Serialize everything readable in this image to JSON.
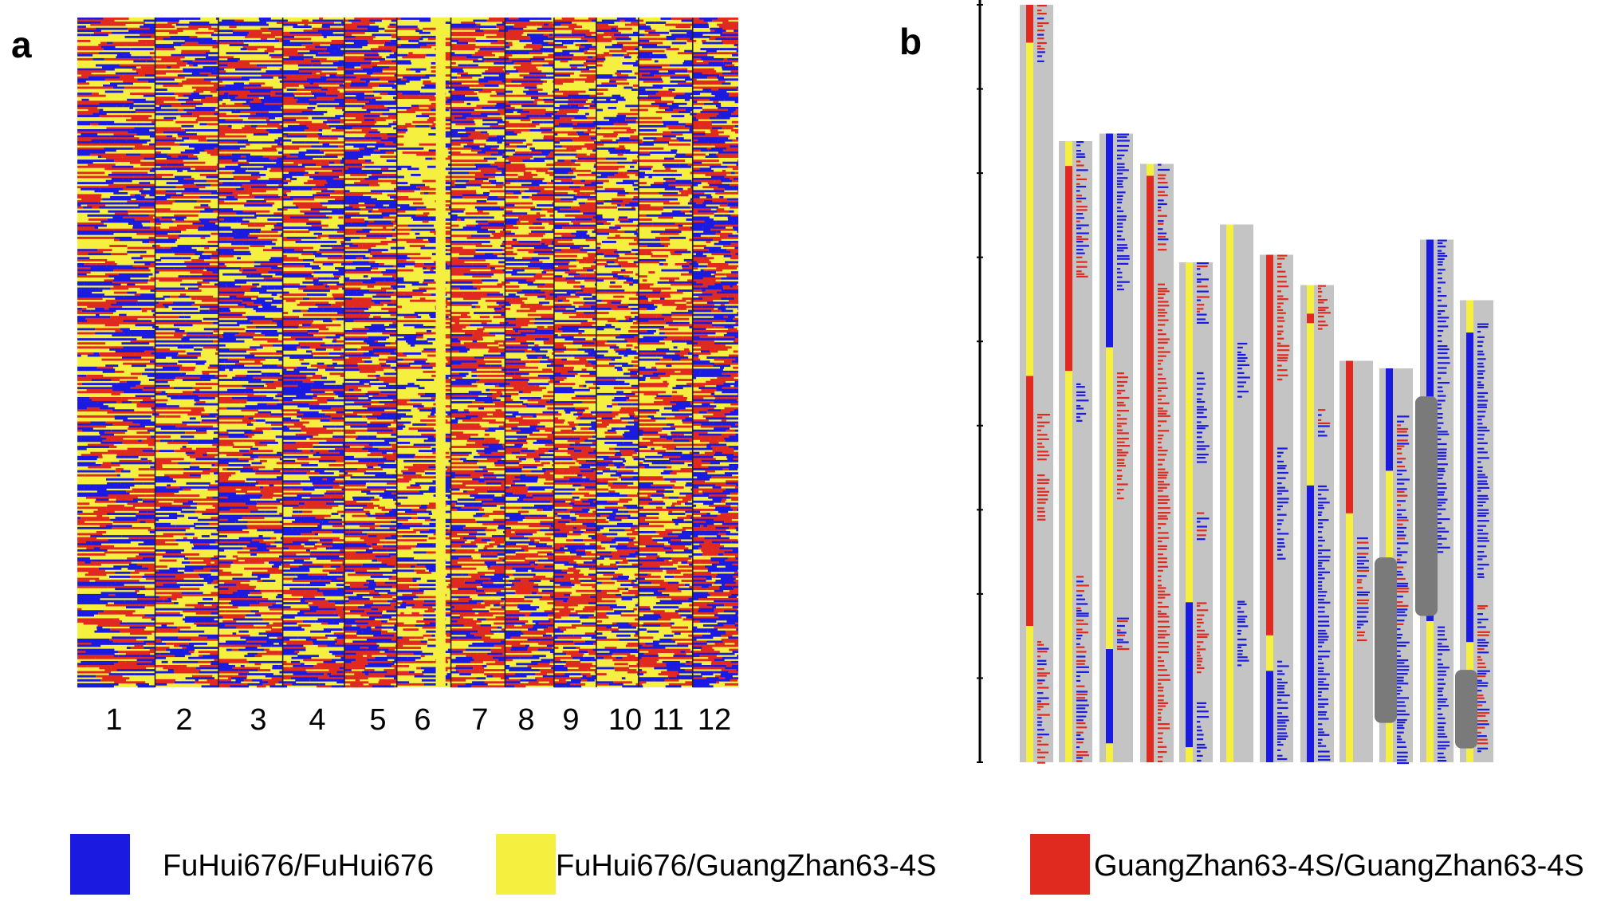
{
  "figure": {
    "panel_a_letter": "a",
    "panel_b_letter": "b"
  },
  "chart_data": [
    {
      "type": "heatmap",
      "panel": "a",
      "title": "",
      "xlabel": "",
      "ylabel": "",
      "x_tick_labels": [
        "1",
        "2",
        "3",
        "4",
        "5",
        "6",
        "7",
        "8",
        "9",
        "10",
        "11",
        "12"
      ],
      "columns": [
        {
          "label": "1",
          "width_weight": 9.2,
          "mix": [
            0.32,
            0.4,
            0.28
          ]
        },
        {
          "label": "2",
          "width_weight": 7.5,
          "mix": [
            0.28,
            0.44,
            0.28
          ]
        },
        {
          "label": "3",
          "width_weight": 7.6,
          "mix": [
            0.33,
            0.4,
            0.27
          ]
        },
        {
          "label": "4",
          "width_weight": 7.3,
          "mix": [
            0.35,
            0.36,
            0.29
          ]
        },
        {
          "label": "5",
          "width_weight": 6.2,
          "mix": [
            0.33,
            0.33,
            0.34
          ]
        },
        {
          "label": "6",
          "width_weight": 6.4,
          "mix": [
            0.2,
            0.56,
            0.24
          ]
        },
        {
          "label": "7",
          "width_weight": 6.4,
          "mix": [
            0.24,
            0.38,
            0.38
          ]
        },
        {
          "label": "8",
          "width_weight": 5.8,
          "mix": [
            0.24,
            0.4,
            0.36
          ]
        },
        {
          "label": "9",
          "width_weight": 5.0,
          "mix": [
            0.26,
            0.36,
            0.38
          ]
        },
        {
          "label": "10",
          "width_weight": 5.0,
          "mix": [
            0.22,
            0.52,
            0.26
          ]
        },
        {
          "label": "11",
          "width_weight": 6.4,
          "mix": [
            0.24,
            0.48,
            0.28
          ]
        },
        {
          "label": "12",
          "width_weight": 5.4,
          "mix": [
            0.38,
            0.26,
            0.36
          ]
        }
      ],
      "rows": 330,
      "genotype_colors": [
        "#1a1ae0",
        "#f5f040",
        "#e02a20"
      ]
    },
    {
      "type": "bar",
      "panel": "b",
      "title": "",
      "xlabel": "",
      "ylabel": "",
      "chromosomes": [
        {
          "length": 1.0,
          "segments": [
            [
              "r",
              0,
              0.05
            ],
            [
              "y",
              0.05,
              0.49
            ],
            [
              "r",
              0.49,
              0.82
            ],
            [
              "y",
              0.82,
              1.0
            ]
          ],
          "marker_zones": [
            [
              0.0,
              0.08,
              "br"
            ],
            [
              0.54,
              0.6,
              "r"
            ],
            [
              0.62,
              0.68,
              "r"
            ],
            [
              0.84,
              1.0,
              "br"
            ]
          ]
        },
        {
          "length": 0.82,
          "segments": [
            [
              "y",
              0,
              0.04
            ],
            [
              "r",
              0.04,
              0.37
            ],
            [
              "y",
              0.37,
              1.0
            ]
          ],
          "marker_zones": [
            [
              0.0,
              0.22,
              "br"
            ],
            [
              0.39,
              0.45,
              "b"
            ],
            [
              0.7,
              1.0,
              "br"
            ]
          ]
        },
        {
          "length": 0.83,
          "segments": [
            [
              "b",
              0,
              0.34
            ],
            [
              "y",
              0.34,
              0.82
            ],
            [
              "b",
              0.82,
              0.97
            ],
            [
              "y",
              0.97,
              1.0
            ]
          ],
          "marker_zones": [
            [
              0.0,
              0.25,
              "b"
            ],
            [
              0.38,
              0.58,
              "r"
            ],
            [
              0.77,
              0.82,
              "br"
            ]
          ]
        },
        {
          "length": 0.79,
          "segments": [
            [
              "y",
              0,
              0.02
            ],
            [
              "r",
              0.02,
              1.0
            ]
          ],
          "marker_zones": [
            [
              0.0,
              0.15,
              "br"
            ],
            [
              0.2,
              1.0,
              "r"
            ]
          ]
        },
        {
          "length": 0.66,
          "segments": [
            [
              "y",
              0,
              0.68
            ],
            [
              "b",
              0.68,
              0.97
            ],
            [
              "y",
              0.97,
              1.0
            ]
          ],
          "marker_zones": [
            [
              0.0,
              0.12,
              "br"
            ],
            [
              0.22,
              0.4,
              "b"
            ],
            [
              0.5,
              0.56,
              "br"
            ],
            [
              0.68,
              0.82,
              "r"
            ],
            [
              0.88,
              1.0,
              "b"
            ]
          ]
        },
        {
          "length": 0.71,
          "segments": [
            [
              "y",
              0,
              1.0
            ]
          ],
          "marker_zones": [
            [
              0.22,
              0.32,
              "b"
            ],
            [
              0.7,
              0.82,
              "b"
            ]
          ]
        },
        {
          "length": 0.67,
          "segments": [
            [
              "r",
              0,
              0.75
            ],
            [
              "y",
              0.75,
              0.82
            ],
            [
              "b",
              0.82,
              1.0
            ]
          ],
          "marker_zones": [
            [
              0.0,
              0.25,
              "r"
            ],
            [
              0.38,
              0.6,
              "b"
            ],
            [
              0.8,
              1.0,
              "b"
            ]
          ]
        },
        {
          "length": 0.63,
          "segments": [
            [
              "y",
              0,
              0.06
            ],
            [
              "r",
              0.06,
              0.08
            ],
            [
              "y",
              0.08,
              0.42
            ],
            [
              "b",
              0.42,
              1.0
            ]
          ],
          "marker_zones": [
            [
              0.0,
              0.1,
              "r"
            ],
            [
              0.26,
              0.32,
              "br"
            ],
            [
              0.42,
              1.0,
              "b"
            ]
          ]
        },
        {
          "length": 0.53,
          "segments": [
            [
              "r",
              0,
              0.38
            ],
            [
              "y",
              0.38,
              1.0
            ]
          ],
          "marker_zones": [
            [
              0.44,
              0.7,
              "br"
            ]
          ]
        },
        {
          "length": 0.52,
          "segments": [
            [
              "b",
              0,
              0.26
            ],
            [
              "y",
              0.26,
              1.0
            ]
          ],
          "marker_zones": [
            [
              0.12,
              0.65,
              "br"
            ],
            [
              0.66,
              1.0,
              "b"
            ]
          ],
          "centromere": [
            0.48,
            0.9
          ]
        },
        {
          "length": 0.69,
          "segments": [
            [
              "b",
              0,
              0.73
            ],
            [
              "y",
              0.73,
              1.0
            ]
          ],
          "marker_zones": [
            [
              0.0,
              0.6,
              "b"
            ],
            [
              0.74,
              1.0,
              "b"
            ]
          ],
          "centromere": [
            0.3,
            0.72
          ]
        },
        {
          "length": 0.61,
          "segments": [
            [
              "y",
              0,
              0.07
            ],
            [
              "b",
              0.07,
              0.74
            ],
            [
              "y",
              0.74,
              1.0
            ]
          ],
          "marker_zones": [
            [
              0.05,
              0.6,
              "b"
            ],
            [
              0.66,
              0.98,
              "br"
            ]
          ],
          "centromere": [
            0.8,
            0.97
          ]
        }
      ]
    }
  ],
  "legend": {
    "items": [
      {
        "label": "FuHui676/FuHui676",
        "color": "#1a1ae0"
      },
      {
        "label": "FuHui676/GuangZhan63-4S",
        "color": "#f5f040"
      },
      {
        "label": "GuangZhan63-4S/GuangZhan63-4S",
        "color": "#e02a20"
      }
    ]
  }
}
